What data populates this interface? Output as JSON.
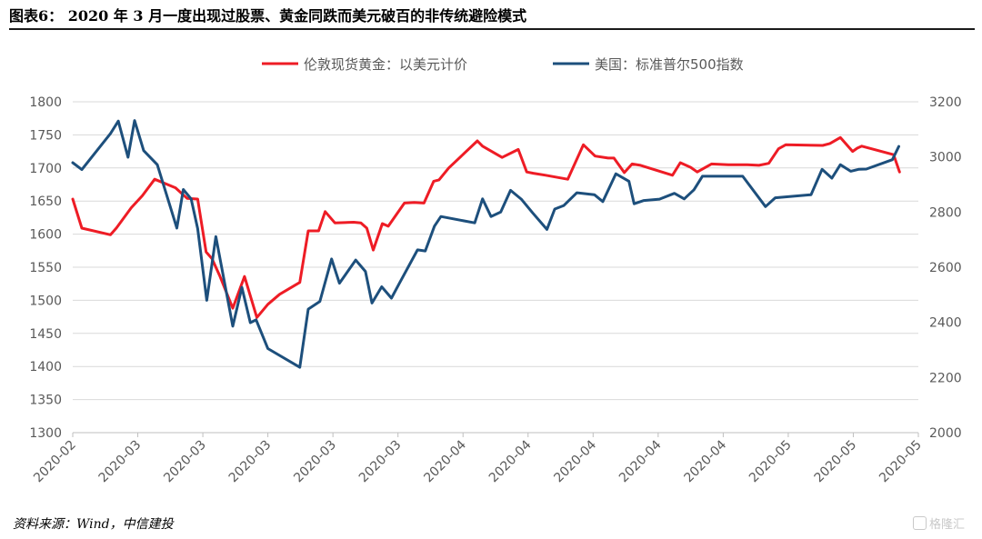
{
  "figure": {
    "title": "图表6： 2020 年 3 月一度出现过股票、黄金同跌而美元破百的非传统避险模式",
    "source": "资料来源：Wind，中信建投",
    "watermark": "格隆汇"
  },
  "chart_data": {
    "type": "line",
    "title": "",
    "legend_position": "top",
    "grid": "horizontal",
    "x_tick_labels": [
      "2020-02",
      "2020-03",
      "2020-03",
      "2020-03",
      "2020-03",
      "2020-03",
      "2020-04",
      "2020-04",
      "2020-04",
      "2020-04",
      "2020-04",
      "2020-05",
      "2020-05",
      "2020-05"
    ],
    "y_left": {
      "ylim": [
        1300,
        1800
      ],
      "ticks": [
        1300,
        1350,
        1400,
        1450,
        1500,
        1550,
        1600,
        1650,
        1700,
        1750,
        1800
      ]
    },
    "y_right": {
      "ylim": [
        2000,
        3200
      ],
      "ticks": [
        2000,
        2200,
        2400,
        2600,
        2800,
        3000,
        3200
      ]
    },
    "x_domain": [
      0,
      13
    ],
    "series": [
      {
        "name": "伦敦现货黄金：以美元计价",
        "axis": "left",
        "color": "#ee1c25",
        "x": [
          0,
          0.14,
          0.58,
          0.67,
          0.9,
          1.07,
          1.26,
          1.58,
          1.76,
          1.92,
          2.05,
          2.14,
          2.26,
          2.46,
          2.64,
          2.83,
          3.0,
          3.18,
          3.49,
          3.62,
          3.78,
          3.88,
          4.03,
          4.32,
          4.43,
          4.52,
          4.62,
          4.76,
          4.85,
          5.1,
          5.25,
          5.4,
          5.55,
          5.63,
          5.78,
          6.22,
          6.3,
          6.6,
          6.85,
          6.98,
          7.08,
          7.27,
          7.61,
          7.85,
          8.03,
          8.23,
          8.32,
          8.48,
          8.6,
          8.73,
          9.22,
          9.34,
          9.5,
          9.6,
          9.82,
          10.08,
          10.37,
          10.55,
          10.7,
          10.85,
          10.96,
          11.53,
          11.64,
          11.8,
          11.99,
          12.06,
          12.13,
          12.62,
          12.71
        ],
        "values": [
          1653,
          1609,
          1599,
          1609,
          1640,
          1658,
          1683,
          1670,
          1654,
          1653,
          1573,
          1563,
          1537,
          1488,
          1536,
          1474,
          1494,
          1509,
          1527,
          1605,
          1605,
          1634,
          1617,
          1618,
          1617,
          1609,
          1576,
          1616,
          1612,
          1647,
          1648,
          1647,
          1680,
          1682,
          1700,
          1741,
          1733,
          1716,
          1728,
          1694,
          1692,
          1689,
          1683,
          1735,
          1718,
          1715,
          1715,
          1693,
          1706,
          1704,
          1689,
          1708,
          1701,
          1694,
          1706,
          1705,
          1705,
          1704,
          1707,
          1729,
          1735,
          1734,
          1737,
          1746,
          1725,
          1730,
          1733,
          1720,
          1694
        ]
      },
      {
        "name": "美国：标准普尔500指数",
        "axis": "right",
        "color": "#1d4f7c",
        "x": [
          0,
          0.14,
          0.58,
          0.7,
          0.85,
          0.95,
          1.09,
          1.3,
          1.6,
          1.7,
          1.82,
          1.92,
          2.06,
          2.2,
          2.46,
          2.6,
          2.73,
          2.82,
          3.0,
          3.49,
          3.62,
          3.8,
          3.98,
          4.1,
          4.35,
          4.5,
          4.6,
          4.75,
          4.9,
          5.02,
          5.3,
          5.42,
          5.56,
          5.66,
          6.18,
          6.3,
          6.43,
          6.58,
          6.73,
          6.9,
          7.07,
          7.29,
          7.41,
          7.55,
          7.75,
          8.02,
          8.15,
          8.35,
          8.55,
          8.63,
          8.78,
          9.02,
          9.25,
          9.4,
          9.55,
          9.68,
          10.03,
          10.3,
          10.65,
          10.8,
          11.35,
          11.52,
          11.67,
          11.8,
          11.96,
          12.08,
          12.2,
          12.6,
          12.7
        ],
        "values": [
          2979,
          2954,
          3085,
          3130,
          2999,
          3132,
          3023,
          2972,
          2742,
          2882,
          2848,
          2740,
          2480,
          2711,
          2386,
          2527,
          2399,
          2409,
          2305,
          2237,
          2448,
          2476,
          2630,
          2542,
          2626,
          2585,
          2470,
          2529,
          2488,
          2541,
          2663,
          2659,
          2749,
          2784,
          2761,
          2848,
          2784,
          2800,
          2879,
          2846,
          2797,
          2737,
          2811,
          2824,
          2870,
          2863,
          2838,
          2939,
          2912,
          2830,
          2842,
          2847,
          2868,
          2848,
          2881,
          2930,
          2930,
          2930,
          2820,
          2852,
          2863,
          2955,
          2923,
          2972,
          2948,
          2955,
          2956,
          2990,
          3038
        ]
      }
    ]
  }
}
